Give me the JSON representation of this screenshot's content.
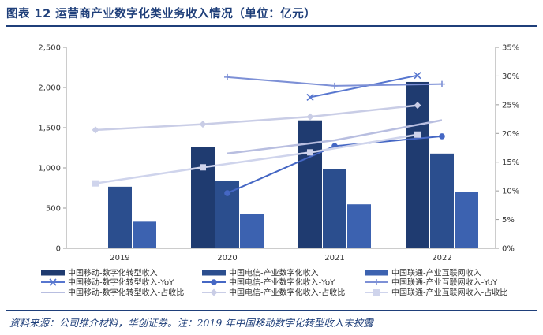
{
  "figure_title": "图表 12  运营商产业数字化类业务收入情况（单位：亿元）",
  "source_note": "资料来源：公司推介材料，华创证券。注：2019 年中国移动数字化转型收入未披露",
  "colors": {
    "title": "#1f3f7a",
    "cm_bar": "#1f3b70",
    "ct_bar": "#2b4e8e",
    "cu_bar": "#3c62b0",
    "cm_yoy": "#5776cf",
    "ct_yoy": "#4567c4",
    "cu_yoy": "#7d90d6",
    "cm_share": "#b8bee0",
    "ct_share": "#c9cde6",
    "cu_share": "#cfd4ec"
  },
  "chart_data": {
    "type": "bar",
    "categories": [
      "2019",
      "2020",
      "2021",
      "2022"
    ],
    "ylim": [
      0,
      2500
    ],
    "yticks": [
      "0",
      "500",
      "1,000",
      "1,500",
      "2,000",
      "2,500"
    ],
    "y2lim": [
      0,
      35
    ],
    "y2ticks": [
      "0%",
      "5%",
      "10%",
      "15%",
      "20%",
      "25%",
      "30%",
      "35%"
    ],
    "series": [
      {
        "name": "中国移动-数字化转型收入",
        "kind": "bar",
        "axis": "left",
        "values": [
          null,
          1259,
          1591,
          2069
        ]
      },
      {
        "name": "中国电信-产业数字化收入",
        "kind": "bar",
        "axis": "left",
        "values": [
          766,
          837,
          986,
          1178
        ]
      },
      {
        "name": "中国联通-产业互联网收入",
        "kind": "bar",
        "axis": "left",
        "values": [
          330,
          425,
          547,
          705
        ]
      },
      {
        "name": "中国移动-数字化转型收入-YoY",
        "kind": "line",
        "marker": "x",
        "axis": "right",
        "values": [
          null,
          null,
          26.3,
          30.1
        ]
      },
      {
        "name": "中国电信-产业数字化收入-YoY",
        "kind": "line",
        "marker": "circle",
        "axis": "right",
        "values": [
          null,
          9.6,
          17.8,
          19.5
        ]
      },
      {
        "name": "中国联通-产业互联网收入-YoY",
        "kind": "line",
        "marker": "plus",
        "axis": "right",
        "values": [
          null,
          29.8,
          28.3,
          28.6
        ]
      },
      {
        "name": "中国移动-数字化转型收入-占收比",
        "kind": "line",
        "marker": "none",
        "axis": "right",
        "values": [
          null,
          16.5,
          18.8,
          22.3
        ]
      },
      {
        "name": "中国电信-产业数字化收入-占收比",
        "kind": "line",
        "marker": "diamond",
        "axis": "right",
        "values": [
          20.6,
          21.6,
          22.9,
          24.9
        ]
      },
      {
        "name": "中国联通-产业互联网收入-占收比",
        "kind": "line",
        "marker": "square",
        "axis": "right",
        "values": [
          11.3,
          14.1,
          16.7,
          19.8
        ]
      }
    ]
  }
}
